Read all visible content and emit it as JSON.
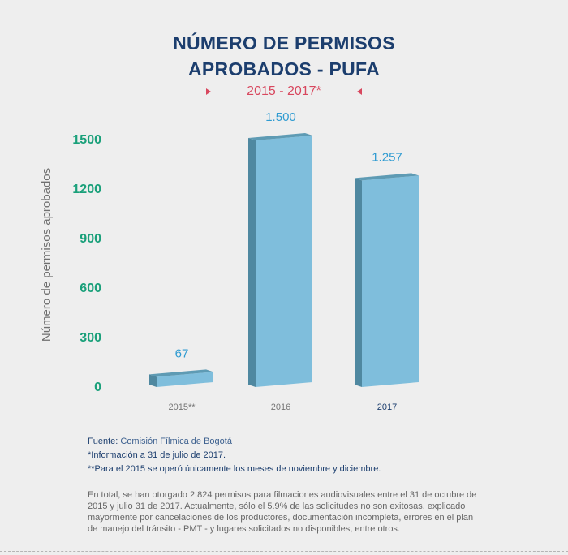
{
  "title_line1": "NÚMERO DE PERMISOS",
  "title_line2": "APROBADOS - PUFA",
  "subtitle": "2015 - 2017*",
  "colors": {
    "title": "#1c3e6e",
    "subtitle": "#d8475e",
    "tick": "#1aa07a",
    "bar_front": "#7fbedc",
    "bar_top": "#5e9bb4",
    "bar_side": "#4f88a0",
    "value_label": "#2f9bd1"
  },
  "chart_data": {
    "type": "bar",
    "categories": [
      "2015**",
      "2016",
      "2017"
    ],
    "values": [
      67,
      1500,
      1257
    ],
    "value_labels": [
      "67",
      "1.500",
      "1.257"
    ],
    "ylabel": "Número de permisos aprobados",
    "yticks": [
      "0",
      "300",
      "600",
      "900",
      "1200",
      "1500"
    ],
    "ytick_values": [
      0,
      300,
      600,
      900,
      1200,
      1500
    ],
    "ylim": [
      0,
      1500
    ],
    "grid": false
  },
  "footer": {
    "source_label": "Fuente:",
    "source_value": "Comisión Fílmica de Bogotá",
    "note1": "*Información a 31 de julio de 2017.",
    "note2": "**Para el 2015 se operó únicamente los meses de noviembre y diciembre.",
    "paragraph": "En total, se han otorgado 2.824 permisos para filmaciones audiovisuales entre el 31 de octubre de 2015 y julio 31 de 2017. Actualmente, sólo el 5.9% de las solicitudes no son exitosas, explicado mayormente por cancelaciones de los productores, documentación incompleta, errores en el plan de manejo del tránsito - PMT - y lugares solicitados no disponibles, entre otros."
  }
}
